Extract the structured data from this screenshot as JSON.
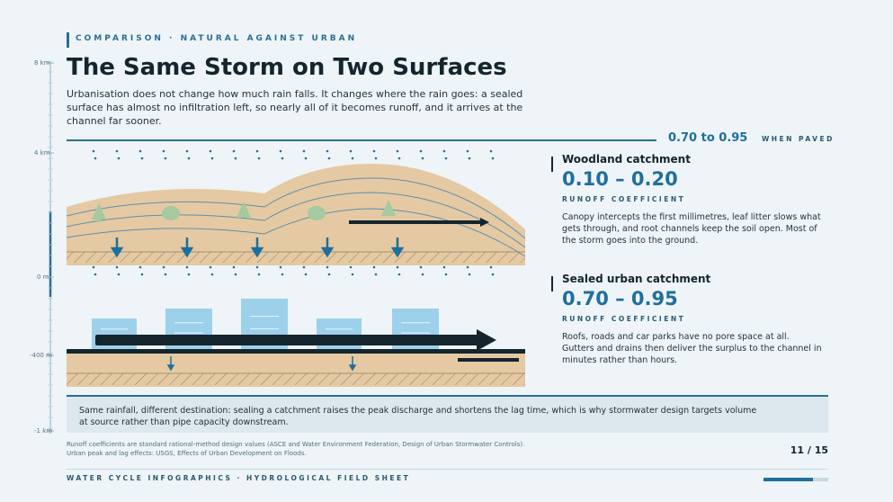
{
  "header": {
    "kicker": "COMPARISON · NATURAL AGAINST URBAN",
    "title": "The Same Storm on Two Surfaces",
    "subtitle": "Urbanisation does not change how much rain falls. It changes where the rain goes: a sealed surface has almost no infiltration left, so nearly all of it becomes runoff, and it arrives at the channel far sooner."
  },
  "scale": {
    "labels": [
      "8 km",
      "4 km",
      "0 m",
      "-400 m",
      "-1 km"
    ]
  },
  "highlight": {
    "value": "0.70 to 0.95",
    "label": "WHEN PAVED"
  },
  "cards": [
    {
      "title": "Woodland catchment",
      "value": "0.10 – 0.20",
      "label": "RUNOFF COEFFICIENT",
      "text": "Canopy intercepts the first millimetres, leaf litter slows what gets through, and root channels keep the soil open. Most of the storm goes into the ground."
    },
    {
      "title": "Sealed urban catchment",
      "value": "0.70 – 0.95",
      "label": "RUNOFF COEFFICIENT",
      "text": "Roofs, roads and car parks have no pore space at all. Gutters and drains then deliver the surplus to the channel in minutes rather than hours."
    }
  ],
  "callout": {
    "text": "Same rainfall, different destination: sealing a catchment raises the peak discharge and shortens the lag time, which is why stormwater design targets volume at source rather than pipe capacity downstream."
  },
  "source": "Runoff coefficients are standard rational-method design values (ASCE and Water Environment Federation, Design of Urban Stormwater Controls). Urban peak and lag effects: USGS, Effects of Urban Development on Floods.",
  "page": "11 / 15",
  "footer": "WATER CYCLE INFOGRAPHICS · HYDROLOGICAL FIELD SHEET",
  "colors": {
    "accent": "#2a6f94",
    "soil": "#e5c9a2",
    "water": "#1f6f9d",
    "building": "#9dd0ea",
    "dark": "#14252e"
  }
}
